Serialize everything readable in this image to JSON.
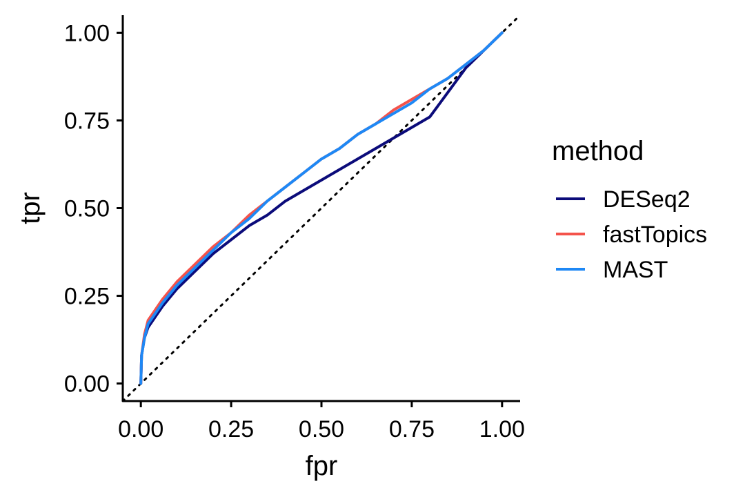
{
  "chart_data": {
    "type": "line",
    "xlabel": "fpr",
    "ylabel": "tpr",
    "xlim": [
      -0.05,
      1.05
    ],
    "ylim": [
      -0.05,
      1.05
    ],
    "x_ticks": [
      0,
      0.25,
      0.5,
      0.75,
      1
    ],
    "x_tick_labels": [
      "0.00",
      "0.25",
      "0.50",
      "0.75",
      "1.00"
    ],
    "y_ticks": [
      0,
      0.25,
      0.5,
      0.75,
      1
    ],
    "y_tick_labels": [
      "0.00",
      "0.25",
      "0.50",
      "0.75",
      "1.00"
    ],
    "reference_line": {
      "style": "dotted",
      "color": "#000000",
      "from": [
        -0.05,
        -0.05
      ],
      "to": [
        1.05,
        1.05
      ]
    },
    "legend": {
      "title": "method",
      "position": "right"
    },
    "series": [
      {
        "name": "DESeq2",
        "color": "#0b0b7a",
        "points": [
          [
            0,
            0
          ],
          [
            0.002,
            0.08
          ],
          [
            0.01,
            0.13
          ],
          [
            0.02,
            0.16
          ],
          [
            0.04,
            0.19
          ],
          [
            0.06,
            0.22
          ],
          [
            0.1,
            0.27
          ],
          [
            0.15,
            0.32
          ],
          [
            0.2,
            0.37
          ],
          [
            0.25,
            0.41
          ],
          [
            0.3,
            0.45
          ],
          [
            0.35,
            0.48
          ],
          [
            0.4,
            0.52
          ],
          [
            0.45,
            0.55
          ],
          [
            0.5,
            0.58
          ],
          [
            0.55,
            0.61
          ],
          [
            0.6,
            0.64
          ],
          [
            0.65,
            0.67
          ],
          [
            0.7,
            0.7
          ],
          [
            0.75,
            0.73
          ],
          [
            0.8,
            0.76
          ],
          [
            0.85,
            0.83
          ],
          [
            0.9,
            0.9
          ],
          [
            0.95,
            0.95
          ],
          [
            1,
            1
          ]
        ]
      },
      {
        "name": "fastTopics",
        "color": "#f4534b",
        "points": [
          [
            0,
            0
          ],
          [
            0.002,
            0.08
          ],
          [
            0.01,
            0.14
          ],
          [
            0.02,
            0.18
          ],
          [
            0.04,
            0.21
          ],
          [
            0.06,
            0.24
          ],
          [
            0.1,
            0.29
          ],
          [
            0.15,
            0.34
          ],
          [
            0.2,
            0.39
          ],
          [
            0.25,
            0.43
          ],
          [
            0.3,
            0.48
          ],
          [
            0.35,
            0.52
          ],
          [
            0.4,
            0.56
          ],
          [
            0.45,
            0.6
          ],
          [
            0.5,
            0.64
          ],
          [
            0.55,
            0.67
          ],
          [
            0.6,
            0.71
          ],
          [
            0.65,
            0.74
          ],
          [
            0.7,
            0.78
          ],
          [
            0.75,
            0.81
          ],
          [
            0.8,
            0.84
          ],
          [
            0.85,
            0.87
          ],
          [
            0.9,
            0.91
          ],
          [
            0.95,
            0.95
          ],
          [
            1,
            1
          ]
        ]
      },
      {
        "name": "MAST",
        "color": "#1e88f5",
        "points": [
          [
            0,
            0
          ],
          [
            0.002,
            0.08
          ],
          [
            0.01,
            0.13
          ],
          [
            0.02,
            0.17
          ],
          [
            0.04,
            0.2
          ],
          [
            0.06,
            0.23
          ],
          [
            0.1,
            0.28
          ],
          [
            0.15,
            0.33
          ],
          [
            0.2,
            0.38
          ],
          [
            0.25,
            0.43
          ],
          [
            0.3,
            0.47
          ],
          [
            0.35,
            0.52
          ],
          [
            0.4,
            0.56
          ],
          [
            0.45,
            0.6
          ],
          [
            0.5,
            0.64
          ],
          [
            0.55,
            0.67
          ],
          [
            0.6,
            0.71
          ],
          [
            0.65,
            0.74
          ],
          [
            0.7,
            0.77
          ],
          [
            0.75,
            0.8
          ],
          [
            0.8,
            0.84
          ],
          [
            0.85,
            0.87
          ],
          [
            0.9,
            0.91
          ],
          [
            0.95,
            0.95
          ],
          [
            1,
            1
          ]
        ]
      }
    ]
  }
}
